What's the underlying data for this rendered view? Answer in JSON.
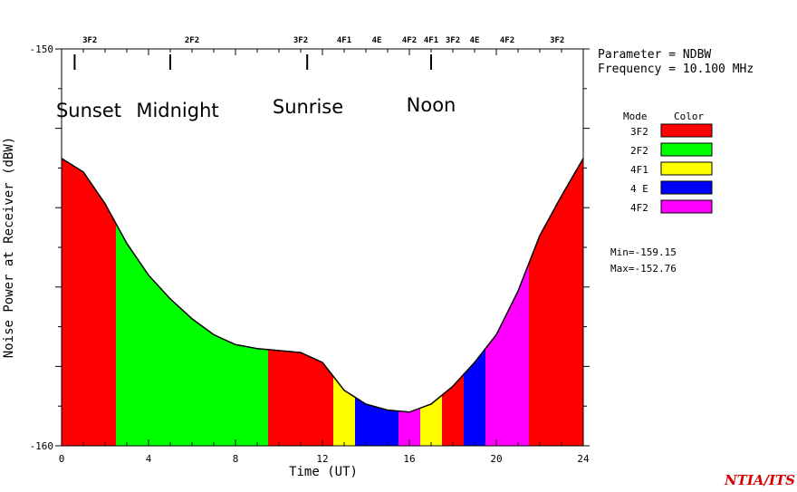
{
  "chart_data": {
    "type": "area",
    "xlabel": "Time (UT)",
    "ylabel": "Noise Power at Receiver (dBW)",
    "xlim": [
      0,
      24
    ],
    "ylim": [
      -160,
      -150
    ],
    "x_ticks": [
      "0",
      "4",
      "8",
      "12",
      "16",
      "20",
      "24"
    ],
    "y_ticks": [
      "-150",
      "-160"
    ],
    "x": [
      0,
      1,
      2,
      3,
      4,
      5,
      6,
      7,
      8,
      9,
      10,
      11,
      12,
      13,
      14,
      15,
      16,
      17,
      18,
      19,
      20,
      21,
      22,
      23,
      24
    ],
    "y": [
      -152.76,
      -153.1,
      -153.9,
      -154.9,
      -155.7,
      -156.3,
      -156.8,
      -157.2,
      -157.45,
      -157.55,
      -157.6,
      -157.65,
      -157.9,
      -158.6,
      -158.95,
      -159.1,
      -159.15,
      -158.95,
      -158.5,
      -157.9,
      -157.2,
      -156.1,
      -154.7,
      -153.7,
      -152.76
    ],
    "mode_segments": [
      {
        "mode": "3F2",
        "start": 0,
        "end": 2.5
      },
      {
        "mode": "2F2",
        "start": 2.5,
        "end": 9.5
      },
      {
        "mode": "3F2",
        "start": 9.5,
        "end": 12.5
      },
      {
        "mode": "4F1",
        "start": 12.5,
        "end": 13.5
      },
      {
        "mode": "4 E",
        "start": 13.5,
        "end": 15.5
      },
      {
        "mode": "4F2",
        "start": 15.5,
        "end": 16.5
      },
      {
        "mode": "4F1",
        "start": 16.5,
        "end": 17.5
      },
      {
        "mode": "3F2",
        "start": 17.5,
        "end": 18.5
      },
      {
        "mode": "4 E",
        "start": 18.5,
        "end": 19.5
      },
      {
        "mode": "4F2",
        "start": 19.5,
        "end": 21.5
      },
      {
        "mode": "3F2",
        "start": 21.5,
        "end": 24
      }
    ],
    "top_mode_labels": [
      {
        "x": 1.3,
        "label": "3F2"
      },
      {
        "x": 6.0,
        "label": "2F2"
      },
      {
        "x": 11.0,
        "label": "3F2"
      },
      {
        "x": 13.0,
        "label": "4F1"
      },
      {
        "x": 14.5,
        "label": "4E"
      },
      {
        "x": 16.0,
        "label": "4F2"
      },
      {
        "x": 17.0,
        "label": "4F1"
      },
      {
        "x": 18.0,
        "label": "3F2"
      },
      {
        "x": 19.0,
        "label": "4E"
      },
      {
        "x": 20.5,
        "label": "4F2"
      },
      {
        "x": 22.8,
        "label": "3F2"
      }
    ],
    "events": [
      {
        "x": 0.6,
        "label": "Sunset"
      },
      {
        "x": 5.0,
        "label": "Midnight"
      },
      {
        "x": 11.3,
        "label": "Sunrise"
      },
      {
        "x": 17.0,
        "label": "Noon"
      }
    ],
    "legend": {
      "header_mode": "Mode",
      "header_color": "Color",
      "items": [
        {
          "mode": "3F2",
          "color": "#ff0000"
        },
        {
          "mode": "2F2",
          "color": "#00ff00"
        },
        {
          "mode": "4F1",
          "color": "#ffff00"
        },
        {
          "mode": "4 E",
          "color": "#0000ff"
        },
        {
          "mode": "4F2",
          "color": "#ff00ff"
        }
      ]
    },
    "parameter_text": "Parameter = NDBW",
    "frequency_text": "Frequency = 10.100 MHz",
    "min_text": "Min=-159.15",
    "max_text": "Max=-152.76"
  },
  "brand": "NTIA/ITS"
}
